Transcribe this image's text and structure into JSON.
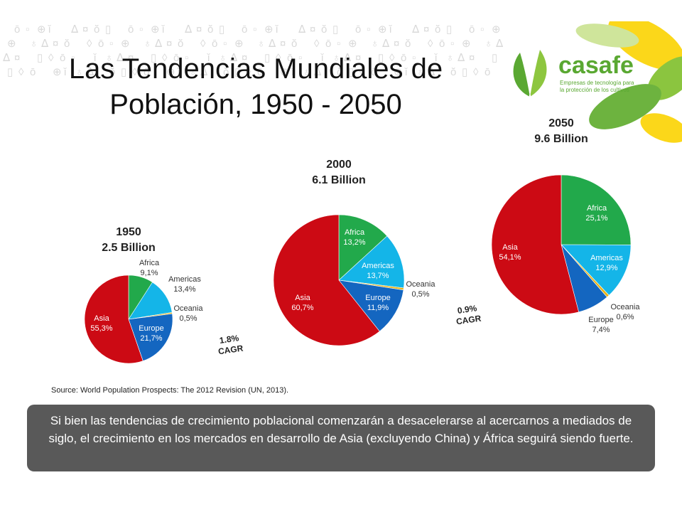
{
  "slide": {
    "title_line1": "Las Tendencias Mundiales de",
    "title_line2": "Población, 1950 - 2050",
    "source": "Source: World Population Prospects: The 2012 Revision (UN,  2013).",
    "callout": "Si bien las tendencias de crecimiento poblacional comenzarán a desacelerarse al acercarnos a mediados de siglo, el crecimiento en los mercados en desarrollo de Asia (excluyendo China) y África seguirá siendo fuerte.",
    "logo": {
      "name": "casafe",
      "tagline_line1": "Empresas de tecnología para",
      "tagline_line2": "la protección de los cultivos"
    },
    "cagr": [
      {
        "value": "1.8%",
        "label": "CAGR"
      },
      {
        "value": "0.9%",
        "label": "CAGR"
      }
    ]
  },
  "chart_data": [
    {
      "type": "pie",
      "title": "1950",
      "subtitle": "2.5 Billion",
      "categories": [
        "Africa",
        "Americas",
        "Oceania",
        "Europe",
        "Asia"
      ],
      "values": [
        9.1,
        13.4,
        0.5,
        21.7,
        55.3
      ],
      "labels": [
        "9,1%",
        "13,4%",
        "0,5%",
        "21,7%",
        "55,3%"
      ],
      "colors": [
        "#22A94B",
        "#14B5E8",
        "#E8B416",
        "#1466C0",
        "#CC0A14"
      ]
    },
    {
      "type": "pie",
      "title": "2000",
      "subtitle": "6.1 Billion",
      "categories": [
        "Africa",
        "Americas",
        "Oceania",
        "Europe",
        "Asia"
      ],
      "values": [
        13.2,
        13.7,
        0.5,
        11.9,
        60.7
      ],
      "labels": [
        "13,2%",
        "13,7%",
        "0,5%",
        "11,9%",
        "60,7%"
      ],
      "colors": [
        "#22A94B",
        "#14B5E8",
        "#E8B416",
        "#1466C0",
        "#CC0A14"
      ]
    },
    {
      "type": "pie",
      "title": "2050",
      "subtitle": "9.6 Billion",
      "categories": [
        "Africa",
        "Americas",
        "Oceania",
        "Europe",
        "Asia"
      ],
      "values": [
        25.1,
        12.9,
        0.6,
        7.4,
        54.1
      ],
      "labels": [
        "25,1%",
        "12,9%",
        "0,6%",
        "7,4%",
        "54,1%"
      ],
      "colors": [
        "#22A94B",
        "#14B5E8",
        "#E8B416",
        "#1466C0",
        "#CC0A14"
      ]
    }
  ]
}
